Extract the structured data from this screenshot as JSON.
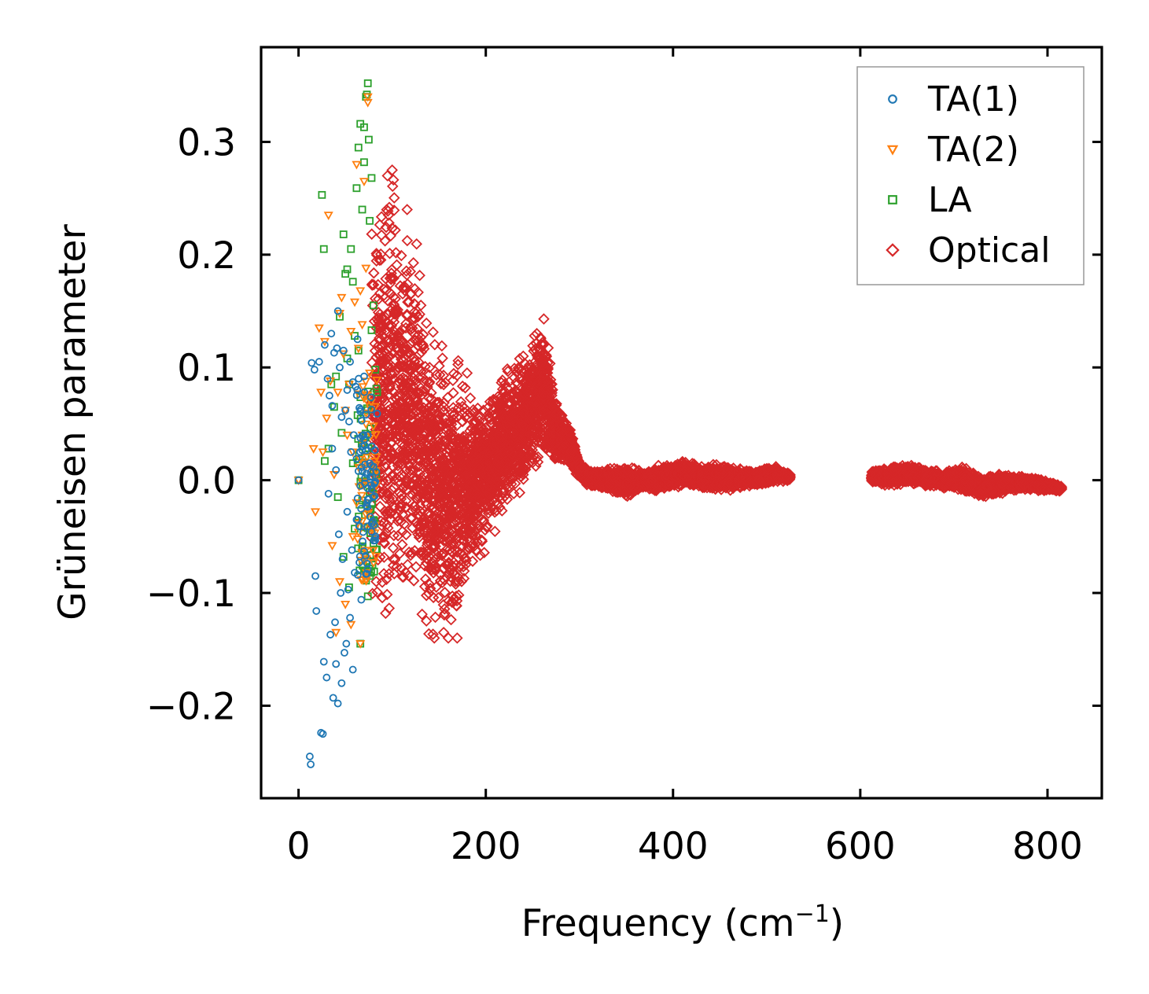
{
  "chart_data": {
    "type": "scatter",
    "title": "",
    "xlabel": "Frequency (cm",
    "xlabel_sup": "−1",
    "xlabel_close": ")",
    "ylabel": "Grüneisen parameter",
    "xlim": [
      -40,
      858
    ],
    "ylim": [
      -0.282,
      0.384
    ],
    "xticks": [
      0,
      200,
      400,
      600,
      800
    ],
    "xtick_labels": [
      "0",
      "200",
      "400",
      "600",
      "800"
    ],
    "yticks": [
      -0.2,
      -0.1,
      0.0,
      0.1,
      0.2,
      0.3
    ],
    "ytick_labels": [
      "−0.2",
      "−0.1",
      "0.0",
      "0.1",
      "0.2",
      "0.3"
    ],
    "legend_position": "upper right",
    "series": [
      {
        "name": "TA(1)",
        "marker": "circle",
        "color": "#1f77b4",
        "points": [
          [
            0,
            0.0
          ],
          [
            12,
            -0.245
          ],
          [
            13,
            -0.252
          ],
          [
            14,
            0.104
          ],
          [
            17,
            0.098
          ],
          [
            18,
            -0.085
          ],
          [
            19,
            -0.116
          ],
          [
            22,
            0.105
          ],
          [
            24,
            -0.224
          ],
          [
            26,
            -0.225
          ],
          [
            27,
            -0.161
          ],
          [
            28,
            0.12
          ],
          [
            30,
            -0.175
          ],
          [
            31,
            0.09
          ],
          [
            32,
            -0.012
          ],
          [
            33,
            0.075
          ],
          [
            34,
            -0.137
          ],
          [
            35,
            0.13
          ],
          [
            36,
            0.066
          ],
          [
            37,
            -0.193
          ],
          [
            38,
            0.113
          ],
          [
            39,
            -0.126
          ],
          [
            40,
            -0.163
          ],
          [
            41,
            0.117
          ],
          [
            42,
            -0.198
          ],
          [
            43,
            -0.048
          ],
          [
            44,
            0.1
          ],
          [
            45,
            -0.1
          ],
          [
            46,
            -0.18
          ],
          [
            47,
            -0.07
          ],
          [
            48,
            0.115
          ],
          [
            49,
            -0.153
          ],
          [
            50,
            0.062
          ],
          [
            51,
            -0.145
          ],
          [
            52,
            0.08
          ],
          [
            53,
            -0.097
          ],
          [
            54,
            0.052
          ],
          [
            55,
            -0.122
          ],
          [
            56,
            0.025
          ],
          [
            57,
            -0.062
          ],
          [
            58,
            -0.168
          ],
          [
            59,
            0.04
          ],
          [
            60,
            -0.082
          ],
          [
            61,
            0.083
          ],
          [
            62,
            -0.035
          ],
          [
            63,
            0.125
          ],
          [
            64,
            0.008
          ],
          [
            65,
            -0.073
          ],
          [
            66,
            -0.005
          ],
          [
            67,
            -0.106
          ],
          [
            68,
            0.03
          ],
          [
            69,
            -0.046
          ],
          [
            70,
            0.092
          ],
          [
            71,
            0.002
          ],
          [
            72,
            0.058
          ],
          [
            73,
            -0.02
          ],
          [
            74,
            0.04
          ],
          [
            75,
            -0.017
          ],
          [
            76,
            0.015
          ],
          [
            77,
            0.007
          ],
          [
            78,
            -0.008
          ],
          [
            79,
            0.003
          ],
          [
            80,
            0.012
          ],
          [
            81,
            -0.003
          ],
          [
            42,
            0.15
          ],
          [
            46,
            0.056
          ],
          [
            52,
            -0.028
          ],
          [
            55,
            0.105
          ],
          [
            58,
            0.087
          ],
          [
            62,
            0.019
          ],
          [
            66,
            0.061
          ],
          [
            70,
            -0.063
          ],
          [
            36,
            0.028
          ],
          [
            40,
            0.009
          ]
        ]
      },
      {
        "name": "TA(2)",
        "marker": "triangle",
        "color": "#ff7f0e",
        "points": [
          [
            0,
            0.0
          ],
          [
            16,
            0.028
          ],
          [
            18,
            -0.028
          ],
          [
            22,
            0.135
          ],
          [
            24,
            0.078
          ],
          [
            26,
            0.025
          ],
          [
            28,
            0.123
          ],
          [
            30,
            0.055
          ],
          [
            32,
            0.235
          ],
          [
            34,
            0.088
          ],
          [
            36,
            -0.058
          ],
          [
            38,
            0.005
          ],
          [
            40,
            -0.135
          ],
          [
            42,
            0.078
          ],
          [
            44,
            0.148
          ],
          [
            46,
            0.162
          ],
          [
            48,
            0.112
          ],
          [
            50,
            -0.11
          ],
          [
            52,
            0.04
          ],
          [
            54,
            0.085
          ],
          [
            56,
            -0.128
          ],
          [
            58,
            0.025
          ],
          [
            60,
            0.158
          ],
          [
            62,
            0.28
          ],
          [
            64,
            0.117
          ],
          [
            66,
            -0.145
          ],
          [
            68,
            0.04
          ],
          [
            70,
            0.265
          ],
          [
            72,
            0.188
          ],
          [
            74,
            0.34
          ],
          [
            76,
            0.095
          ],
          [
            78,
            0.013
          ],
          [
            80,
            0.048
          ],
          [
            82,
            -0.04
          ],
          [
            44,
            -0.09
          ],
          [
            50,
            0.062
          ],
          [
            56,
            0.132
          ],
          [
            62,
            -0.02
          ],
          [
            68,
            0.138
          ],
          [
            72,
            0.075
          ],
          [
            74,
            0.335
          ],
          [
            66,
            0.168
          ],
          [
            58,
            -0.05
          ]
        ]
      },
      {
        "name": "LA",
        "marker": "square",
        "color": "#2ca02c",
        "points": [
          [
            0,
            0.0
          ],
          [
            25,
            0.253
          ],
          [
            27,
            0.205
          ],
          [
            28,
            0.017
          ],
          [
            32,
            0.028
          ],
          [
            35,
            0.085
          ],
          [
            38,
            0.065
          ],
          [
            40,
            0.092
          ],
          [
            42,
            -0.015
          ],
          [
            44,
            0.145
          ],
          [
            46,
            0.042
          ],
          [
            48,
            0.218
          ],
          [
            50,
            0.183
          ],
          [
            52,
            0.108
          ],
          [
            54,
            0.085
          ],
          [
            56,
            0.205
          ],
          [
            58,
            0.015
          ],
          [
            60,
            0.128
          ],
          [
            62,
            0.259
          ],
          [
            64,
            0.295
          ],
          [
            66,
            0.316
          ],
          [
            68,
            0.24
          ],
          [
            70,
            0.313
          ],
          [
            72,
            0.34
          ],
          [
            73,
            0.342
          ],
          [
            74,
            0.352
          ],
          [
            75,
            0.302
          ],
          [
            76,
            0.23
          ],
          [
            78,
            0.268
          ],
          [
            80,
            0.155
          ],
          [
            82,
            0.098
          ],
          [
            84,
            0.078
          ],
          [
            48,
            -0.068
          ],
          [
            54,
            -0.095
          ],
          [
            60,
            -0.043
          ],
          [
            66,
            -0.145
          ],
          [
            70,
            -0.08
          ],
          [
            74,
            -0.103
          ],
          [
            52,
            0.187
          ],
          [
            58,
            0.176
          ],
          [
            64,
            0.115
          ],
          [
            70,
            0.282
          ],
          [
            78,
            0.133
          ]
        ]
      },
      {
        "name": "Optical",
        "marker": "diamond",
        "color": "#d62728",
        "envelope": [
          [
            78,
            -0.1,
            0.26
          ],
          [
            90,
            -0.118,
            0.23
          ],
          [
            100,
            -0.123,
            0.275
          ],
          [
            110,
            -0.125,
            0.22
          ],
          [
            120,
            -0.11,
            0.24
          ],
          [
            130,
            -0.115,
            0.19
          ],
          [
            140,
            -0.145,
            0.135
          ],
          [
            150,
            -0.14,
            0.125
          ],
          [
            160,
            -0.14,
            0.112
          ],
          [
            170,
            -0.14,
            0.115
          ],
          [
            180,
            -0.095,
            0.083
          ],
          [
            190,
            -0.075,
            0.09
          ],
          [
            200,
            -0.065,
            0.075
          ],
          [
            210,
            -0.045,
            0.09
          ],
          [
            220,
            -0.03,
            0.102
          ],
          [
            230,
            -0.02,
            0.104
          ],
          [
            240,
            -0.01,
            0.11
          ],
          [
            250,
            0.005,
            0.13
          ],
          [
            260,
            0.015,
            0.143
          ],
          [
            270,
            0.015,
            0.11
          ],
          [
            280,
            0.015,
            0.06
          ],
          [
            290,
            0.01,
            0.05
          ],
          [
            300,
            0.0,
            0.02
          ],
          [
            310,
            -0.005,
            0.008
          ],
          [
            330,
            -0.01,
            0.01
          ],
          [
            350,
            -0.015,
            0.012
          ],
          [
            370,
            -0.008,
            0.008
          ],
          [
            390,
            -0.01,
            0.015
          ],
          [
            410,
            -0.005,
            0.018
          ],
          [
            430,
            -0.008,
            0.012
          ],
          [
            450,
            -0.01,
            0.015
          ],
          [
            470,
            -0.008,
            0.01
          ],
          [
            490,
            -0.005,
            0.01
          ],
          [
            510,
            -0.002,
            0.012
          ],
          [
            525,
            0.0,
            0.006
          ],
          [
            612,
            -0.002,
            0.008
          ],
          [
            630,
            -0.005,
            0.012
          ],
          [
            650,
            -0.003,
            0.014
          ],
          [
            670,
            -0.005,
            0.01
          ],
          [
            690,
            -0.008,
            0.008
          ],
          [
            710,
            -0.01,
            0.012
          ],
          [
            730,
            -0.015,
            0.002
          ],
          [
            750,
            -0.012,
            0.006
          ],
          [
            770,
            -0.008,
            0.004
          ],
          [
            790,
            -0.01,
            0.002
          ],
          [
            815,
            -0.01,
            -0.005
          ]
        ],
        "outliers": [
          [
            95,
            0.27
          ],
          [
            100,
            0.275
          ],
          [
            116,
            0.24
          ],
          [
            140,
            0.1
          ],
          [
            160,
            -0.14
          ],
          [
            155,
            -0.135
          ],
          [
            180,
            0.095
          ],
          [
            240,
            0.11
          ],
          [
            262,
            0.143
          ],
          [
            145,
            -0.14
          ],
          [
            93,
            -0.118
          ]
        ]
      }
    ]
  }
}
